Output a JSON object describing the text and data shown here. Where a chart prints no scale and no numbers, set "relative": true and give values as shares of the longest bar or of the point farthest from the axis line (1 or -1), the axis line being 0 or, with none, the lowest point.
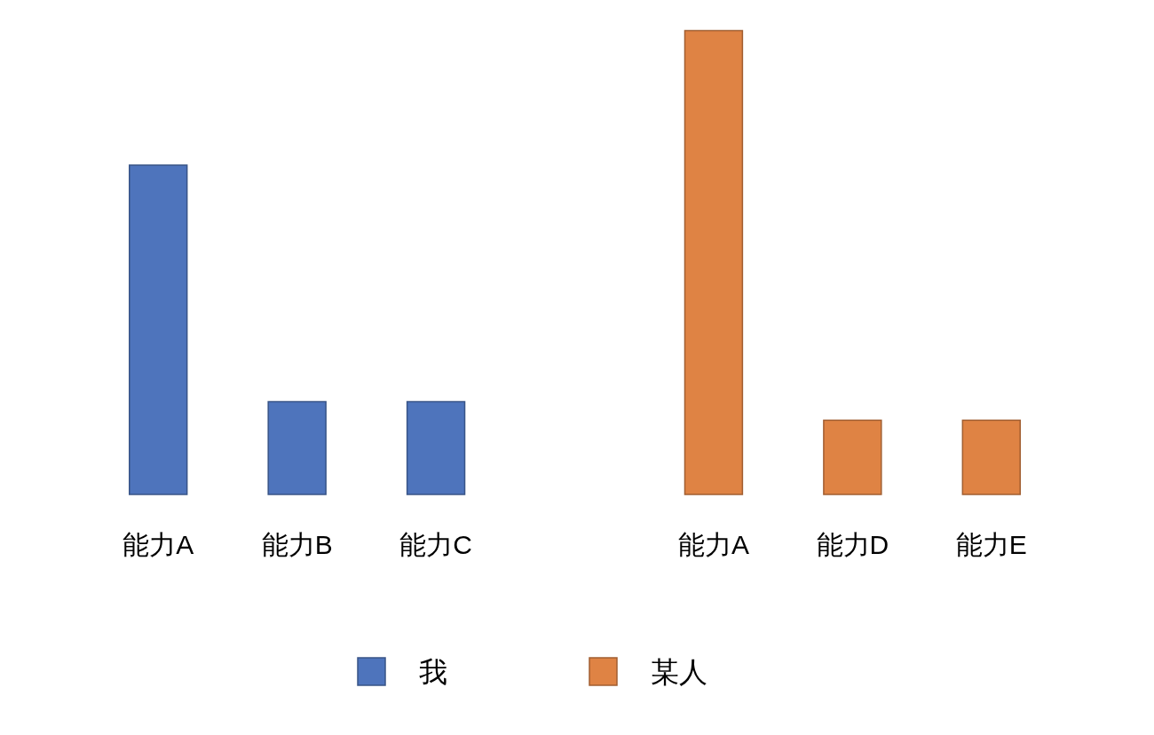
{
  "chart_data": {
    "type": "bar",
    "relative": true,
    "categories": [
      "能力A",
      "能力B",
      "能力C",
      null,
      "能力A",
      "能力D",
      "能力E"
    ],
    "series": [
      {
        "name": "我",
        "color": "#4e74bc",
        "values": [
          0.71,
          0.2,
          0.2,
          null,
          null,
          null,
          null
        ]
      },
      {
        "name": "某人",
        "color": "#df8344",
        "values": [
          null,
          null,
          null,
          null,
          1,
          0.16,
          0.16
        ]
      }
    ],
    "legend": "bottom"
  }
}
